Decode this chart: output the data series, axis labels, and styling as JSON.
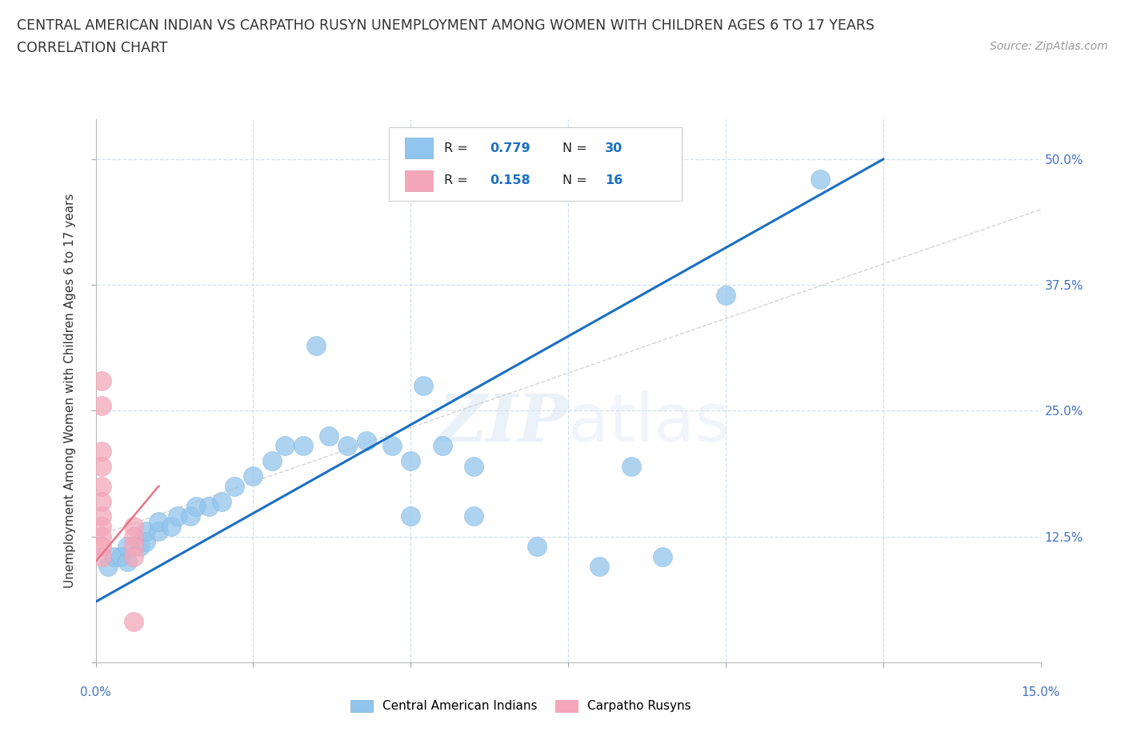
{
  "title_line1": "CENTRAL AMERICAN INDIAN VS CARPATHO RUSYN UNEMPLOYMENT AMONG WOMEN WITH CHILDREN AGES 6 TO 17 YEARS",
  "title_line2": "CORRELATION CHART",
  "source": "Source: ZipAtlas.com",
  "ylabel": "Unemployment Among Women with Children Ages 6 to 17 years",
  "watermark": "ZIPatlas",
  "xlim": [
    0.0,
    0.15
  ],
  "ylim": [
    0.0,
    0.54
  ],
  "xtick_positions": [
    0.0,
    0.025,
    0.05,
    0.075,
    0.1,
    0.125,
    0.15
  ],
  "ytick_positions": [
    0.0,
    0.125,
    0.25,
    0.375,
    0.5
  ],
  "blue_color": "#92C5ED",
  "pink_color": "#F4A7B9",
  "line_blue": "#1a6fc4",
  "line_pink": "#e8748a",
  "line_gray": "#cccccc",
  "blue_scatter": [
    [
      0.002,
      0.095
    ],
    [
      0.003,
      0.105
    ],
    [
      0.004,
      0.105
    ],
    [
      0.005,
      0.1
    ],
    [
      0.005,
      0.115
    ],
    [
      0.007,
      0.115
    ],
    [
      0.008,
      0.12
    ],
    [
      0.008,
      0.13
    ],
    [
      0.01,
      0.13
    ],
    [
      0.01,
      0.14
    ],
    [
      0.012,
      0.135
    ],
    [
      0.013,
      0.145
    ],
    [
      0.015,
      0.145
    ],
    [
      0.016,
      0.155
    ],
    [
      0.018,
      0.155
    ],
    [
      0.02,
      0.16
    ],
    [
      0.022,
      0.175
    ],
    [
      0.025,
      0.185
    ],
    [
      0.028,
      0.2
    ],
    [
      0.03,
      0.215
    ],
    [
      0.033,
      0.215
    ],
    [
      0.037,
      0.225
    ],
    [
      0.04,
      0.215
    ],
    [
      0.043,
      0.22
    ],
    [
      0.047,
      0.215
    ],
    [
      0.05,
      0.2
    ],
    [
      0.055,
      0.215
    ],
    [
      0.06,
      0.195
    ],
    [
      0.05,
      0.145
    ],
    [
      0.06,
      0.145
    ],
    [
      0.035,
      0.315
    ],
    [
      0.052,
      0.275
    ],
    [
      0.085,
      0.195
    ],
    [
      0.07,
      0.115
    ],
    [
      0.08,
      0.095
    ],
    [
      0.09,
      0.105
    ],
    [
      0.1,
      0.365
    ],
    [
      0.115,
      0.48
    ]
  ],
  "pink_scatter": [
    [
      0.001,
      0.28
    ],
    [
      0.001,
      0.255
    ],
    [
      0.001,
      0.21
    ],
    [
      0.001,
      0.195
    ],
    [
      0.001,
      0.175
    ],
    [
      0.001,
      0.16
    ],
    [
      0.001,
      0.145
    ],
    [
      0.001,
      0.135
    ],
    [
      0.001,
      0.125
    ],
    [
      0.001,
      0.115
    ],
    [
      0.001,
      0.105
    ],
    [
      0.006,
      0.135
    ],
    [
      0.006,
      0.125
    ],
    [
      0.006,
      0.115
    ],
    [
      0.006,
      0.105
    ],
    [
      0.006,
      0.04
    ]
  ],
  "blue_fit_x": [
    0.0,
    0.125
  ],
  "blue_fit_y": [
    0.06,
    0.5
  ],
  "pink_fit_x": [
    0.0,
    0.01
  ],
  "pink_fit_y": [
    0.1,
    0.175
  ],
  "gray_fit_x": [
    0.0,
    0.15
  ],
  "gray_fit_y": [
    0.125,
    0.45
  ],
  "background_color": "#ffffff",
  "grid_color": "#c8d8e8",
  "axis_label_color": "#4472c4"
}
